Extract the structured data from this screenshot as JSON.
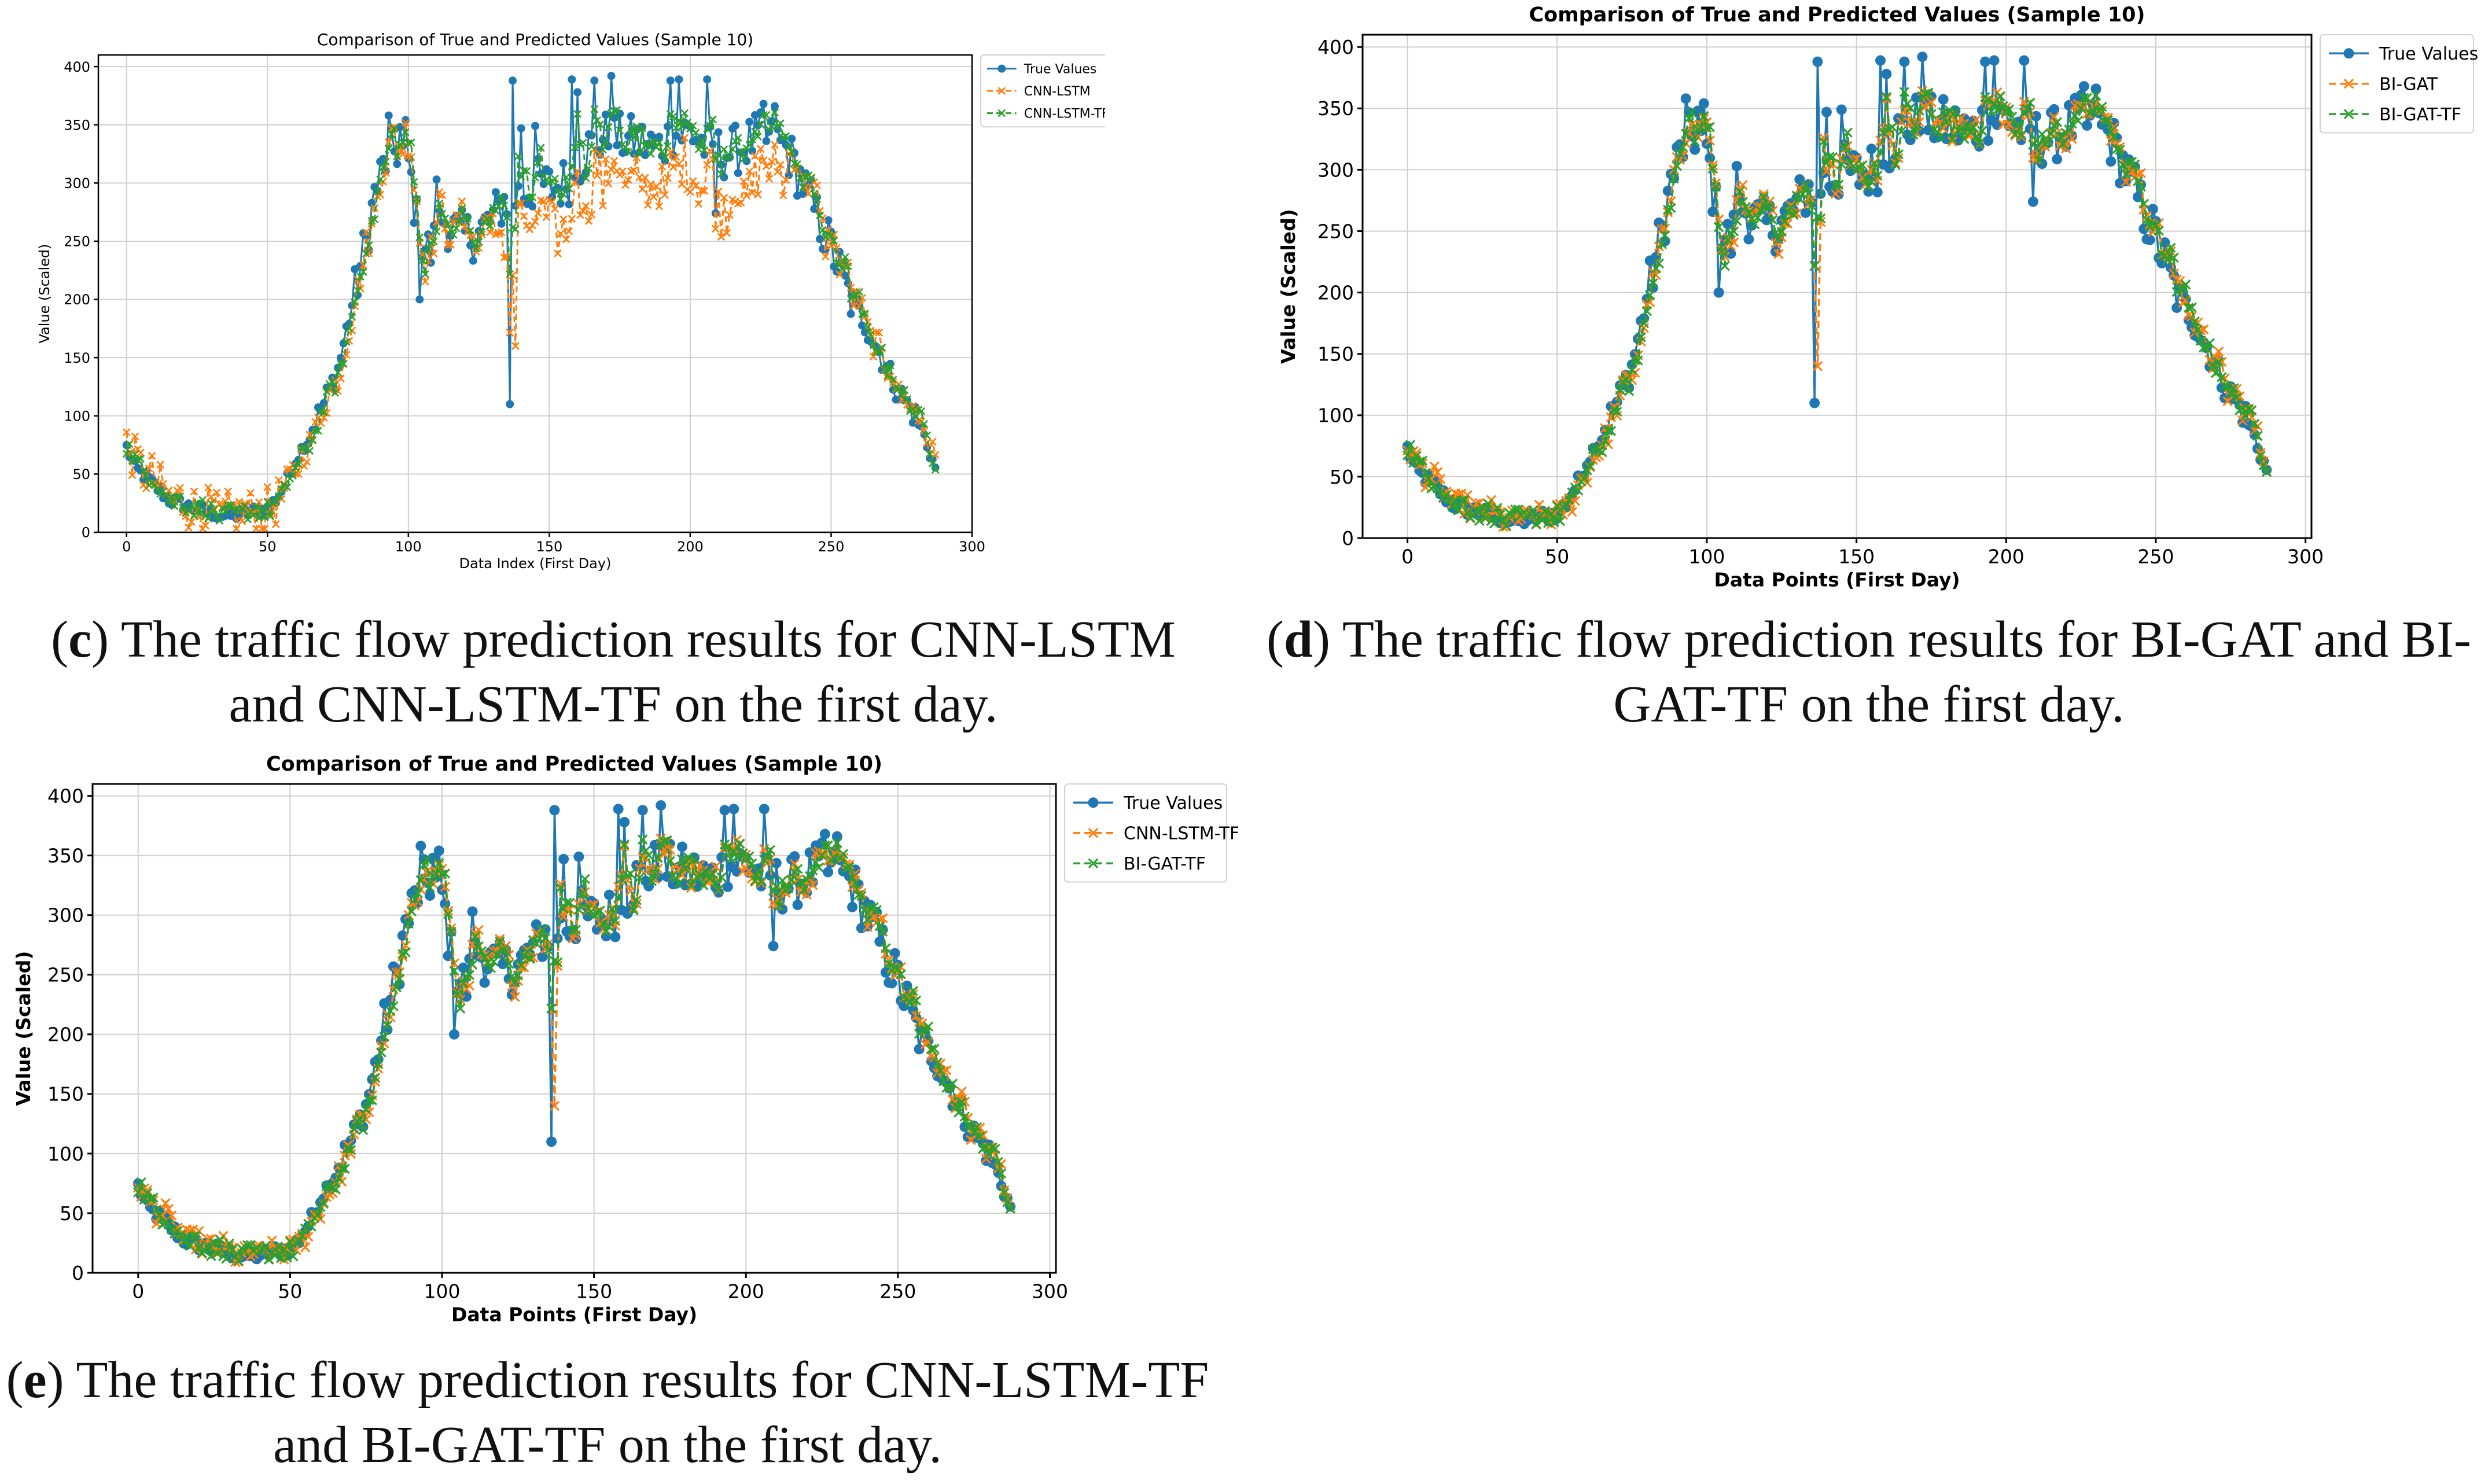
{
  "chart_data": [
    {
      "id": "c",
      "type": "line",
      "title": "Comparison of True and Predicted Values (Sample 10)",
      "xlabel": "Data Index (First Day)",
      "ylabel": "Value (Scaled)",
      "bold_labels": false,
      "xlim": [
        -10,
        300
      ],
      "ylim": [
        0,
        410
      ],
      "xticks": [
        0,
        50,
        100,
        150,
        200,
        250,
        300
      ],
      "yticks": [
        0,
        50,
        100,
        150,
        200,
        250,
        300,
        350,
        400
      ],
      "grid": true,
      "legend": "top-right-outside",
      "series": [
        {
          "name": "True Values",
          "style": "true",
          "color": "#1f77b4"
        },
        {
          "name": "CNN-LSTM",
          "style": "pred1",
          "color": "#ff7f0e"
        },
        {
          "name": "CNN-LSTM-TF",
          "style": "pred2",
          "color": "#2ca02c"
        }
      ]
    },
    {
      "id": "d",
      "type": "line",
      "title": "Comparison of True and Predicted Values (Sample 10)",
      "xlabel": "Data Points (First Day)",
      "ylabel": "Value (Scaled)",
      "bold_labels": true,
      "xlim": [
        -15,
        302
      ],
      "ylim": [
        0,
        410
      ],
      "xticks": [
        0,
        50,
        100,
        150,
        200,
        250,
        300
      ],
      "yticks": [
        0,
        50,
        100,
        150,
        200,
        250,
        300,
        350,
        400
      ],
      "grid": true,
      "legend": "top-right-outside",
      "series": [
        {
          "name": "True Values",
          "style": "true",
          "color": "#1f77b4"
        },
        {
          "name": "BI-GAT",
          "style": "pred1close",
          "color": "#ff7f0e"
        },
        {
          "name": "BI-GAT-TF",
          "style": "pred2",
          "color": "#2ca02c"
        }
      ]
    },
    {
      "id": "e",
      "type": "line",
      "title": "Comparison of True and Predicted Values (Sample 10)",
      "xlabel": "Data Points (First Day)",
      "ylabel": "Value (Scaled)",
      "bold_labels": true,
      "xlim": [
        -15,
        302
      ],
      "ylim": [
        0,
        410
      ],
      "xticks": [
        0,
        50,
        100,
        150,
        200,
        250,
        300
      ],
      "yticks": [
        0,
        50,
        100,
        150,
        200,
        250,
        300,
        350,
        400
      ],
      "grid": true,
      "legend": "top-right-outside",
      "series": [
        {
          "name": "True Values",
          "style": "true",
          "color": "#1f77b4"
        },
        {
          "name": "CNN-LSTM-TF",
          "style": "pred1close",
          "color": "#ff7f0e"
        },
        {
          "name": "BI-GAT-TF",
          "style": "pred2",
          "color": "#2ca02c"
        }
      ]
    }
  ],
  "true_profile": {
    "x": [
      0,
      3,
      8,
      15,
      22,
      30,
      35,
      40,
      45,
      50,
      53,
      56,
      60,
      65,
      70,
      75,
      80,
      85,
      88,
      92,
      96,
      100,
      104,
      108,
      112,
      118,
      124,
      130,
      134,
      140,
      146,
      152,
      158,
      164,
      170,
      176,
      182,
      188,
      194,
      200,
      206,
      212,
      218,
      224,
      230,
      234,
      240,
      246,
      250,
      256,
      262,
      268,
      274,
      280,
      284,
      287
    ],
    "y": [
      73,
      55,
      45,
      28,
      22,
      17,
      14,
      15,
      18,
      20,
      28,
      40,
      62,
      85,
      110,
      140,
      195,
      250,
      290,
      320,
      330,
      318,
      250,
      240,
      270,
      255,
      255,
      270,
      285,
      290,
      300,
      295,
      305,
      330,
      340,
      338,
      335,
      330,
      340,
      345,
      330,
      325,
      330,
      340,
      335,
      330,
      300,
      265,
      245,
      205,
      180,
      150,
      120,
      100,
      75,
      55
    ]
  },
  "spikes": {
    "x": [
      93,
      97,
      99,
      104,
      110,
      136,
      137,
      140,
      145,
      158,
      160,
      166,
      172,
      193,
      196,
      206,
      209,
      226,
      230
    ],
    "y": [
      358,
      348,
      354,
      200,
      303,
      110,
      388,
      347,
      349,
      389,
      378,
      388,
      392,
      388,
      389,
      389,
      274,
      368,
      366
    ]
  },
  "captions": {
    "c_letter": "c",
    "c_text": ") The traffic flow prediction results for CNN-LSTM and CNN-LSTM-TF on the first day.",
    "d_letter": "d",
    "d_text": ") The traffic flow prediction results for BI-GAT and BI-GAT-TF on the first day.",
    "e_letter": "e",
    "e_text": ") The traffic flow prediction results for CNN-LSTM-TF and BI-GAT-TF on the first day."
  }
}
